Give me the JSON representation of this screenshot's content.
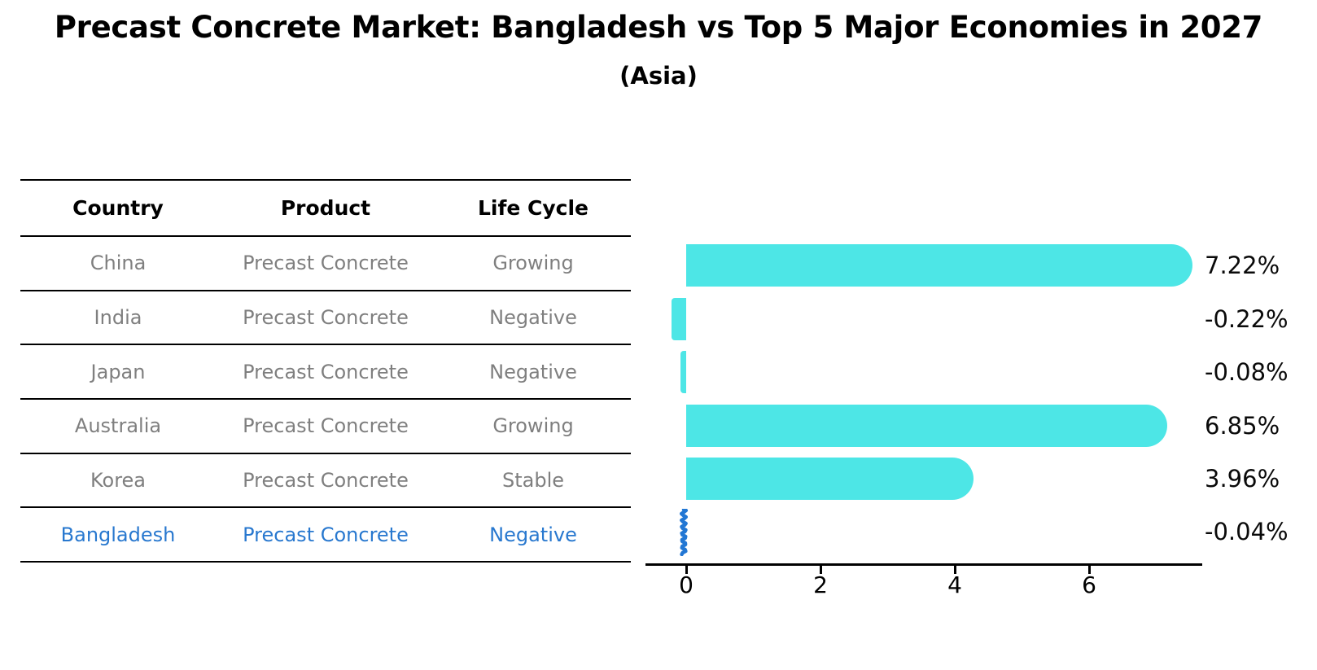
{
  "title": "Precast Concrete Market: Bangladesh vs Top 5 Major Economies in 2027",
  "subtitle": "(Asia)",
  "colors": {
    "bar": "#4DE6E6",
    "highlight": "#2277D4",
    "highlight_text": "#2878CF",
    "table_text": "#7f7f7f",
    "axis": "#000000"
  },
  "table": {
    "headers": [
      "Country",
      "Product",
      "Life Cycle"
    ],
    "rows": [
      {
        "country": "China",
        "product": "Precast Concrete",
        "life_cycle": "Growing",
        "highlight": false
      },
      {
        "country": "India",
        "product": "Precast Concrete",
        "life_cycle": "Negative",
        "highlight": false
      },
      {
        "country": "Japan",
        "product": "Precast Concrete",
        "life_cycle": "Negative",
        "highlight": false
      },
      {
        "country": "Australia",
        "product": "Precast Concrete",
        "life_cycle": "Growing",
        "highlight": false
      },
      {
        "country": "Korea",
        "product": "Precast Concrete",
        "life_cycle": "Stable",
        "highlight": false
      },
      {
        "country": "Bangladesh",
        "product": "Precast Concrete",
        "life_cycle": "Negative",
        "highlight": true
      }
    ]
  },
  "chart_data": {
    "type": "bar",
    "orientation": "horizontal",
    "title": "Precast Concrete Market: Bangladesh vs Top 5 Major Economies in 2027",
    "subtitle": "(Asia)",
    "categories": [
      "China",
      "India",
      "Japan",
      "Australia",
      "Korea",
      "Bangladesh"
    ],
    "values": [
      7.22,
      -0.22,
      -0.08,
      6.85,
      3.96,
      -0.04
    ],
    "value_labels": [
      "7.22%",
      "-0.22%",
      "-0.08%",
      "6.85%",
      "3.96%",
      "-0.04%"
    ],
    "x_ticks": [
      0,
      2,
      4,
      6
    ],
    "xlim": [
      -0.6,
      7.68
    ],
    "grid": false,
    "legend": false,
    "bar_color": "#4DE6E6",
    "highlight_category": "Bangladesh",
    "highlight_marker": "squiggle-line",
    "highlight_color": "#2277D4"
  }
}
